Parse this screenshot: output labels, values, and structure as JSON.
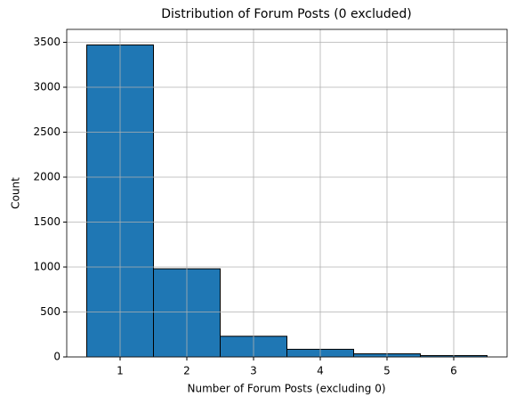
{
  "chart_data": {
    "type": "histogram",
    "title": "Distribution of Forum Posts (0 excluded)",
    "x_label": "Number of Forum Posts (excluding 0)",
    "y_label": "Count",
    "bins": [
      0.5,
      1.5,
      2.5,
      3.5,
      4.5,
      5.5,
      6.5
    ],
    "counts": [
      3470,
      980,
      230,
      85,
      35,
      15
    ],
    "color": "#1f77b4",
    "edgecolor": "#000000",
    "xlim": [
      0.2,
      6.8
    ],
    "ylim": [
      0,
      3643.5
    ],
    "xticks": [
      1,
      2,
      3,
      4,
      5,
      6
    ],
    "yticks": [
      0,
      500,
      1000,
      1500,
      2000,
      2500,
      3000,
      3500
    ],
    "grid": true
  }
}
